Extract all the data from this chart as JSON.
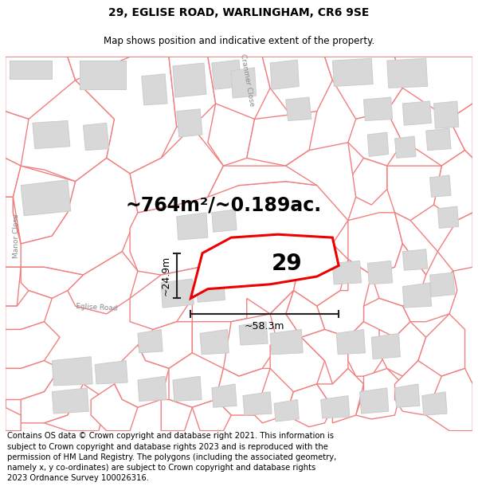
{
  "title_line1": "29, EGLISE ROAD, WARLINGHAM, CR6 9SE",
  "title_line2": "Map shows position and indicative extent of the property.",
  "area_text": "~764m²/~0.189ac.",
  "label_number": "29",
  "dim_height": "~24.9m",
  "dim_width": "~58.3m",
  "road_label": "Eglise Road",
  "side_road_label": "Manor Close",
  "top_road_label": "Cranmer Close",
  "footer_text": "Contains OS data © Crown copyright and database right 2021. This information is subject to Crown copyright and database rights 2023 and is reproduced with the permission of HM Land Registry. The polygons (including the associated geometry, namely x, y co-ordinates) are subject to Crown copyright and database rights 2023 Ordnance Survey 100026316.",
  "background_color": "#ffffff",
  "map_bg_color": "#ffffff",
  "parcel_edge_color": "#f08080",
  "building_color": "#d8d8d8",
  "building_edge": "#cccccc",
  "highlight_color": "#ee0000",
  "dim_line_color": "#222222",
  "road_label_color": "#888888",
  "title_fontsize": 10,
  "subtitle_fontsize": 8.5,
  "area_fontsize": 17,
  "label_fontsize": 20,
  "dim_fontsize": 9,
  "road_label_fontsize": 6.5,
  "footer_fontsize": 7.2
}
